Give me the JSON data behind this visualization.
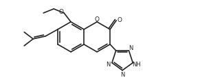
{
  "bg_color": "#ffffff",
  "line_color": "#222222",
  "line_width": 1.2,
  "figsize": [
    2.91,
    1.15
  ],
  "dpi": 100,
  "xlim": [
    0,
    291
  ],
  "ylim": [
    0,
    115
  ]
}
